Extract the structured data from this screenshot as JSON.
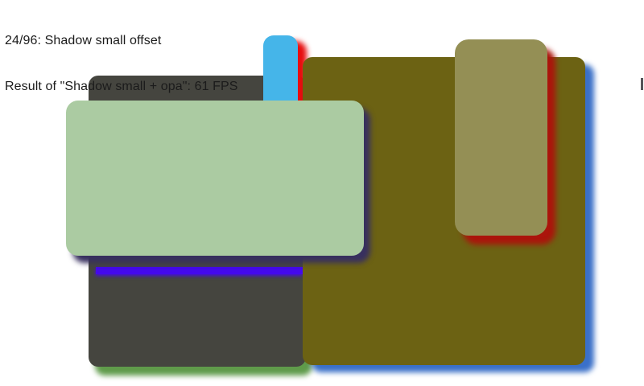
{
  "header": {
    "line1": "24/96: Shadow small offset",
    "line2": "Result of \"Shadow small + opa\": 61 FPS",
    "progress": "24/96",
    "current_test": "Shadow small offset",
    "previous_test": "Shadow small + opa",
    "previous_result_fps": "61 FPS"
  },
  "colors": {
    "page_bg": "#ffffff",
    "text": "#1b1b1b",
    "gray_rect": "#45453f",
    "gray_rect_shadow": "#5f9b4a",
    "sky_rect": "#45b5e9",
    "sky_rect_shadow": "#e70d0e",
    "olive_rect": "#6c6213",
    "olive_rect_shadow": "#3a70c8",
    "green_rect": "#abcba2",
    "green_rect_shadow": "#38305f",
    "violet_band": "#4409ec",
    "khaki_rect": "#948f55",
    "khaki_rect_shadow": "#ab150c",
    "edge_mark": "#55555a"
  }
}
